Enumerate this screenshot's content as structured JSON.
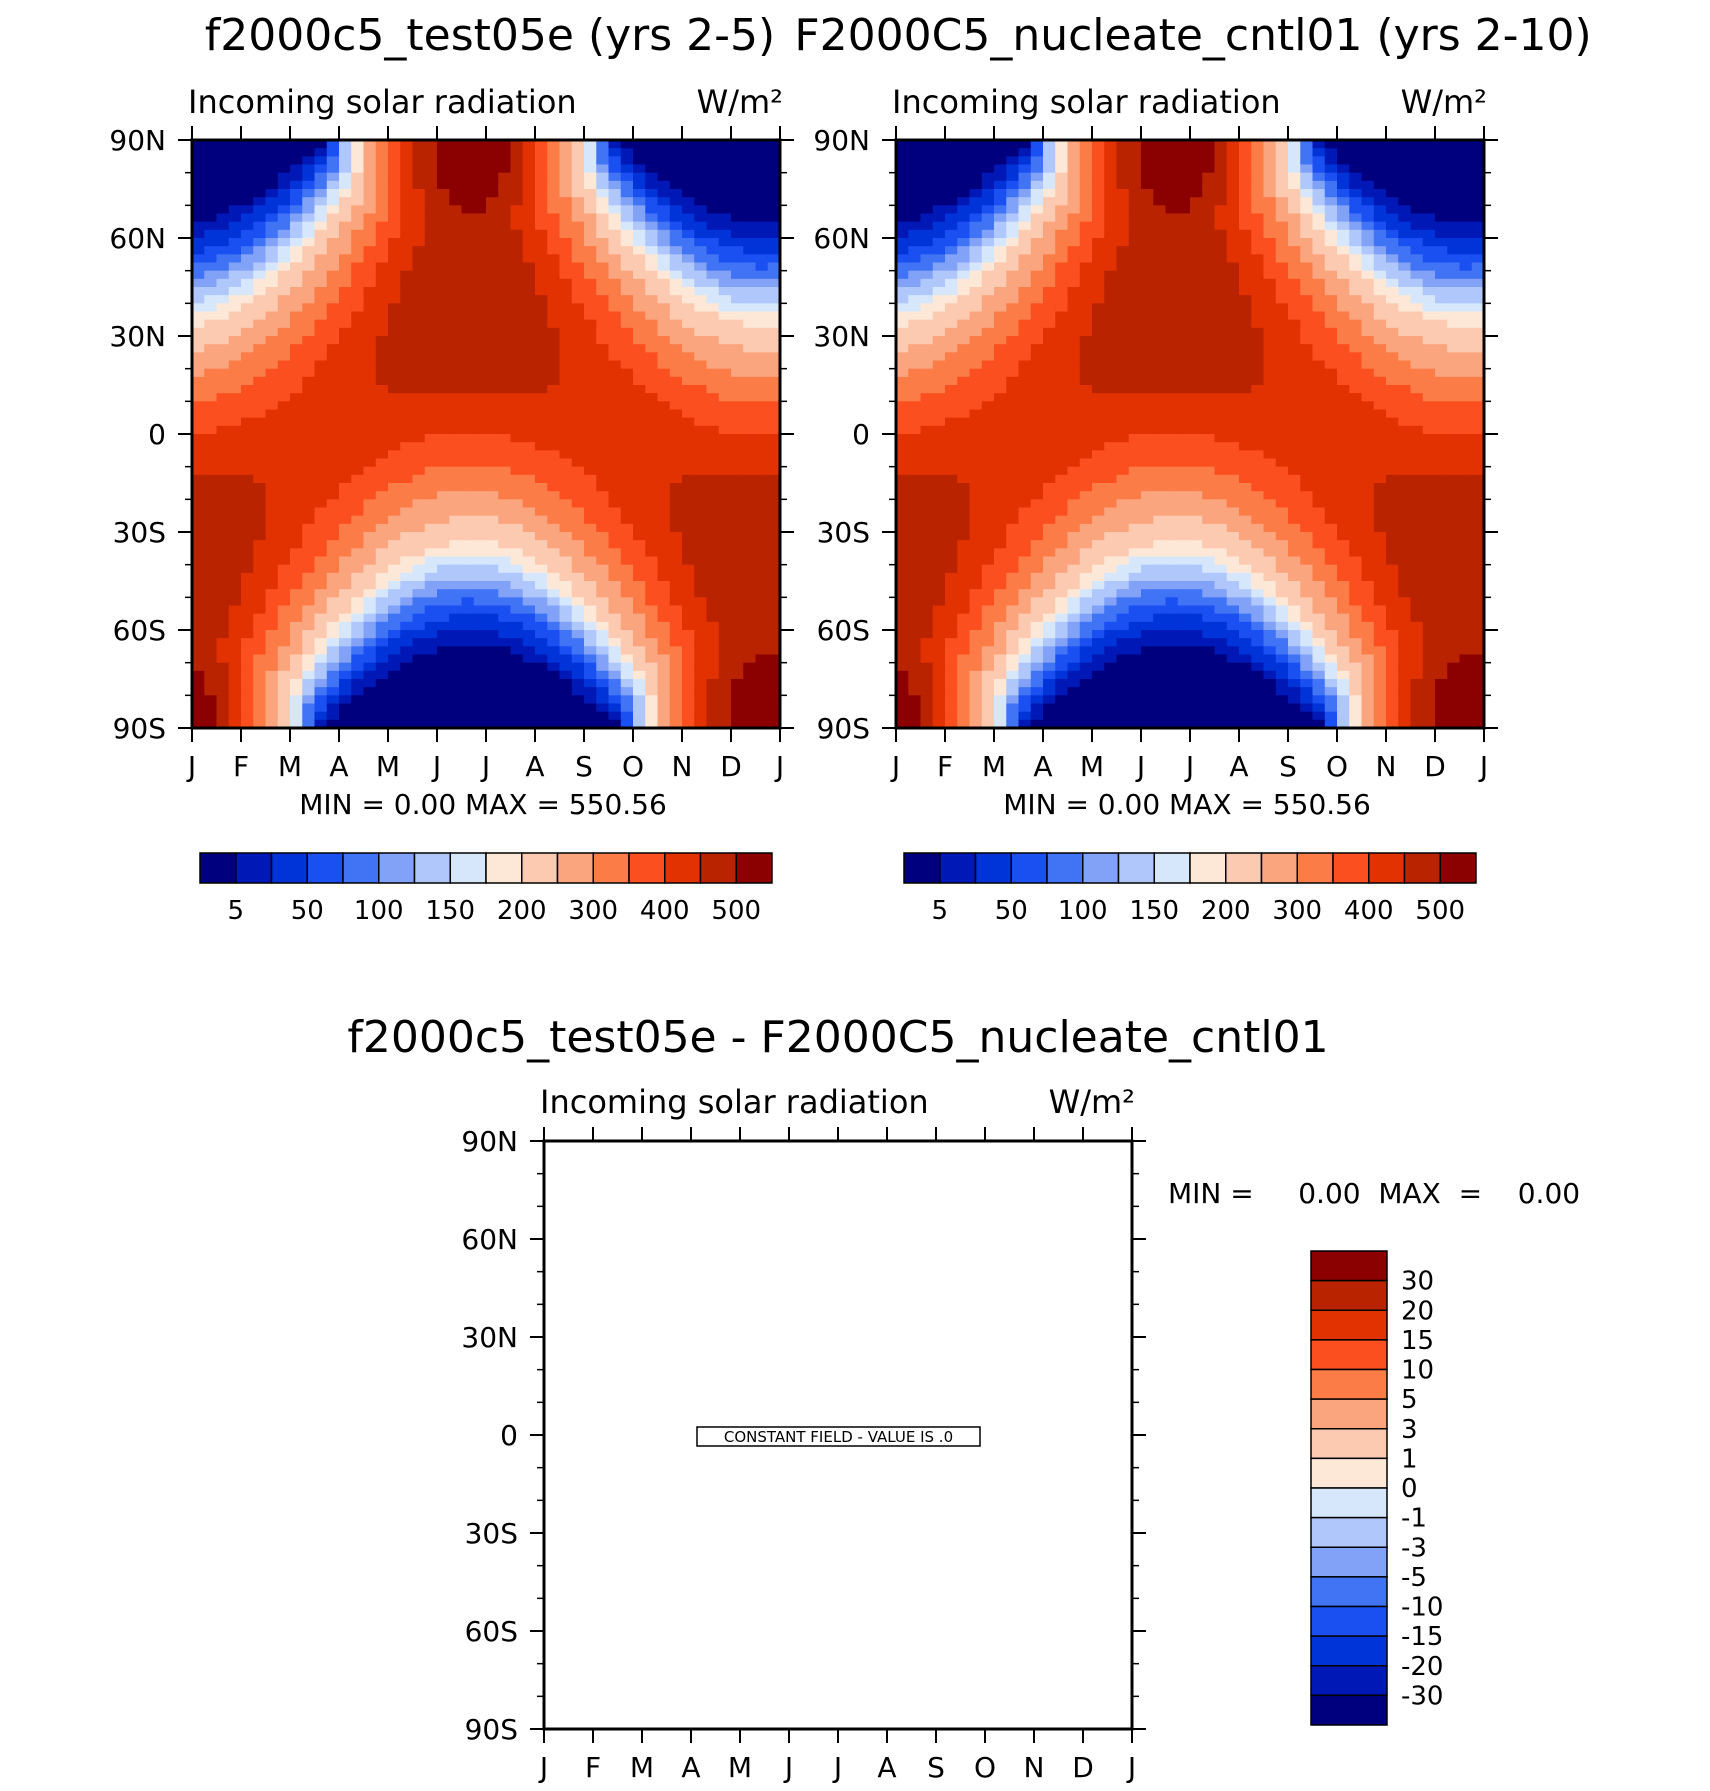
{
  "panels": [
    {
      "title": "f2000c5_test05e (yrs 2-5)",
      "subtitle_left": "Incoming solar radiation",
      "units": "W/m²",
      "stats": "MIN =     0.00  MAX  =  550.56"
    },
    {
      "title": "F2000C5_nucleate_cntl01 (yrs 2-10)",
      "subtitle_left": "Incoming solar radiation",
      "units": "W/m²",
      "stats": "MIN =     0.00  MAX  =  550.56"
    },
    {
      "title": "f2000c5_test05e - F2000C5_nucleate_cntl01",
      "subtitle_left": "Incoming solar radiation",
      "units": "W/m²",
      "stats": "MIN =     0.00  MAX  =    0.00",
      "note": "CONSTANT FIELD - VALUE IS .0"
    }
  ],
  "chart_data": [
    {
      "type": "heatmap",
      "title": "f2000c5_test05e (yrs 2-5)",
      "subtitle": "Incoming solar radiation",
      "units": "W/m2",
      "x_ticks": [
        "J",
        "F",
        "M",
        "A",
        "M",
        "J",
        "J",
        "A",
        "S",
        "O",
        "N",
        "D",
        "J"
      ],
      "y_ticks": [
        "90N",
        "60N",
        "30N",
        "0",
        "30S",
        "60S",
        "90S"
      ],
      "y_range": [
        -90,
        90
      ],
      "min": 0.0,
      "max": 550.56,
      "colorbar_labels": [
        "5",
        "50",
        "100",
        "150",
        "200",
        "300",
        "400",
        "500"
      ]
    },
    {
      "type": "heatmap",
      "title": "F2000C5_nucleate_cntl01 (yrs 2-10)",
      "subtitle": "Incoming solar radiation",
      "units": "W/m2",
      "x_ticks": [
        "J",
        "F",
        "M",
        "A",
        "M",
        "J",
        "J",
        "A",
        "S",
        "O",
        "N",
        "D",
        "J"
      ],
      "y_ticks": [
        "90N",
        "60N",
        "30N",
        "0",
        "30S",
        "60S",
        "90S"
      ],
      "y_range": [
        -90,
        90
      ],
      "min": 0.0,
      "max": 550.56,
      "colorbar_labels": [
        "5",
        "50",
        "100",
        "150",
        "200",
        "300",
        "400",
        "500"
      ]
    },
    {
      "type": "heatmap",
      "title": "f2000c5_test05e - F2000C5_nucleate_cntl01",
      "subtitle": "Incoming solar radiation",
      "units": "W/m2",
      "x_ticks": [
        "J",
        "F",
        "M",
        "A",
        "M",
        "J",
        "J",
        "A",
        "S",
        "O",
        "N",
        "D",
        "J"
      ],
      "y_ticks": [
        "90N",
        "60N",
        "30N",
        "0",
        "30S",
        "60S",
        "90S"
      ],
      "y_range": [
        -90,
        90
      ],
      "min": 0.0,
      "max": 0.0,
      "note": "CONSTANT FIELD - VALUE IS .0",
      "colorbar_labels": [
        "30",
        "20",
        "15",
        "10",
        "5",
        "3",
        "1",
        "0",
        "-1",
        "-3",
        "-5",
        "-10",
        "-15",
        "-20",
        "-30"
      ]
    }
  ],
  "palettes": {
    "absolute": [
      "#00007f",
      "#0018b5",
      "#0033d8",
      "#1a4ff2",
      "#4173f5",
      "#82a2f7",
      "#b0c7fb",
      "#d6e6fb",
      "#fde8d7",
      "#fccab0",
      "#fba57f",
      "#fb7c47",
      "#fb4f1f",
      "#e33201",
      "#b92300",
      "#8b0000"
    ],
    "difference": [
      "#00007f",
      "#0018b5",
      "#0033d8",
      "#1a4ff2",
      "#4173f5",
      "#82a2f7",
      "#b0c7fb",
      "#d6e6fb",
      "#fde8d7",
      "#fccab0",
      "#fba57f",
      "#fb7c47",
      "#fb4f1f",
      "#e33201",
      "#b92300",
      "#8b0000"
    ]
  }
}
